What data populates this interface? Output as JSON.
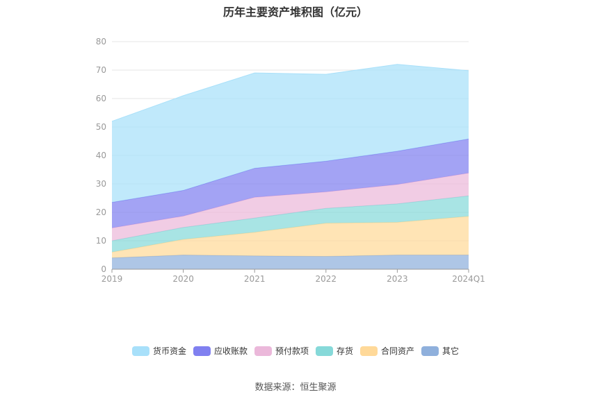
{
  "chart_data": {
    "type": "area",
    "stacked": true,
    "title": "历年主要资产堆积图（亿元）",
    "categories": [
      "2019",
      "2020",
      "2021",
      "2022",
      "2023",
      "2024Q1"
    ],
    "ylim": [
      0,
      80
    ],
    "yticks": [
      0,
      10,
      20,
      30,
      40,
      50,
      60,
      70,
      80
    ],
    "grid": true,
    "legend_position": "bottom",
    "series": [
      {
        "name": "其它",
        "color": "#8fb0dc",
        "values": [
          4,
          5,
          4.7,
          4.5,
          5,
          5
        ]
      },
      {
        "name": "合同资产",
        "color": "#ffd999",
        "values": [
          2,
          5.5,
          8.3,
          11.7,
          11.5,
          13.6
        ]
      },
      {
        "name": "存货",
        "color": "#86d9d9",
        "values": [
          4,
          4.2,
          5,
          5.2,
          6.5,
          7.2
        ]
      },
      {
        "name": "预付款项",
        "color": "#ebb8da",
        "values": [
          4.5,
          4,
          7.3,
          5.8,
          6.8,
          8
        ]
      },
      {
        "name": "应收账款",
        "color": "#8080f0",
        "values": [
          9,
          9,
          10.2,
          10.8,
          11.7,
          12
        ]
      },
      {
        "name": "货币资金",
        "color": "#a8e0fa",
        "values": [
          28.5,
          33.3,
          33.5,
          30.5,
          30.5,
          24
        ]
      }
    ]
  },
  "legend_order": [
    "货币资金",
    "应收账款",
    "预付款项",
    "存货",
    "合同资产",
    "其它"
  ],
  "source": "数据来源：恒生聚源"
}
